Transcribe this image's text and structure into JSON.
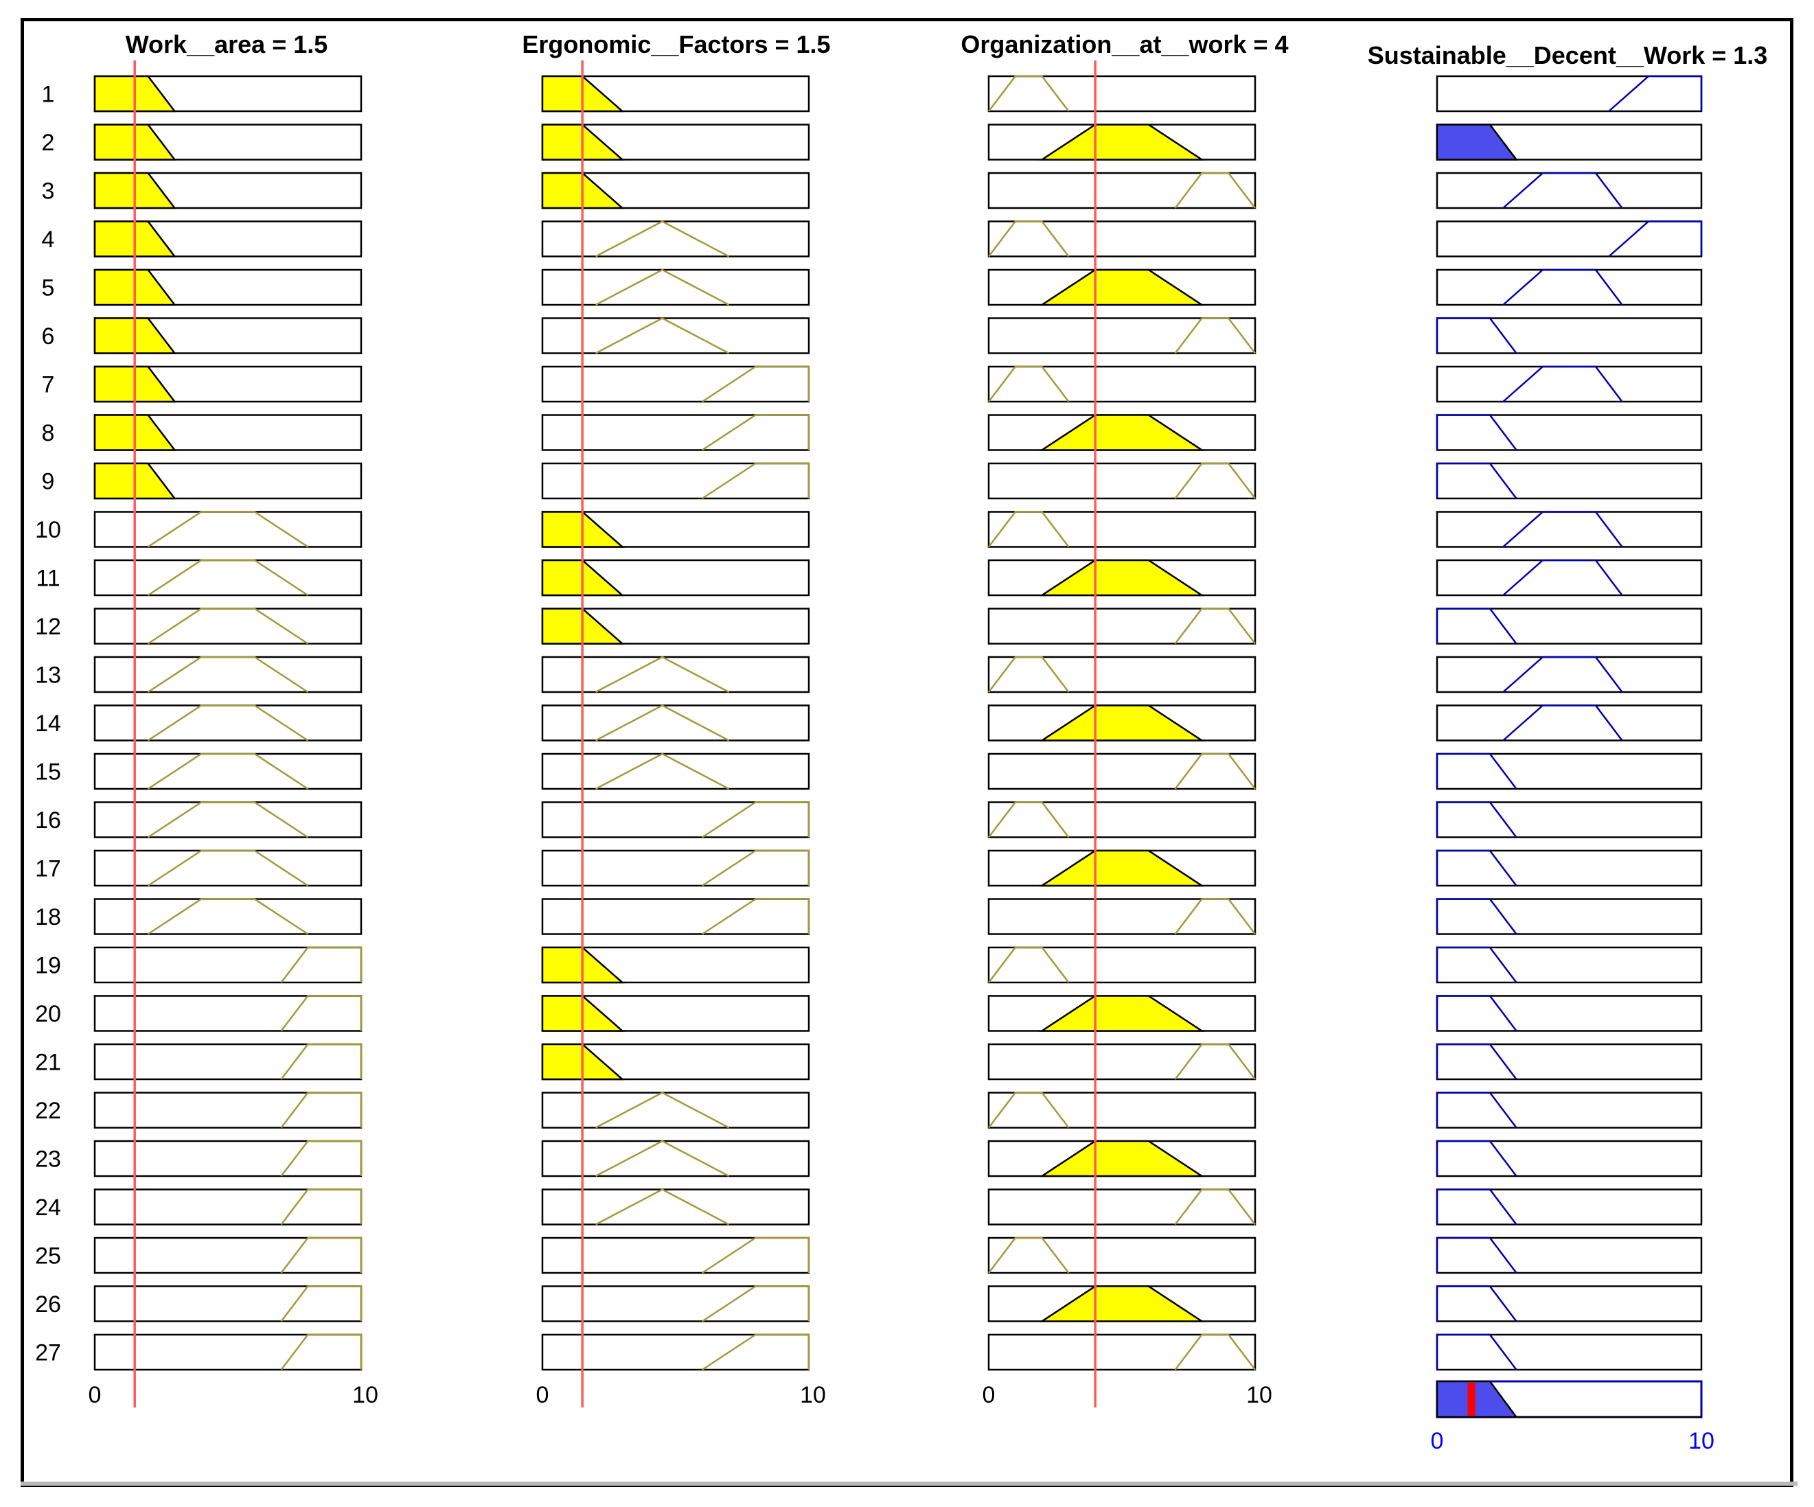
{
  "viewer": {
    "name": "Fuzzy Rule Viewer"
  },
  "colors": {
    "input_fill": "#ffff00",
    "input_edge": "#a39a3c",
    "input_edge_active": "#000000",
    "output_fill": "#4d4ded",
    "output_edge": "#0000b0",
    "cursor": "#ff5a5a",
    "result_line": "#ff0000"
  },
  "chart_data": {
    "type": "fuzzy-rule-viewer",
    "num_rules": 27,
    "rule_labels": [
      "1",
      "2",
      "3",
      "4",
      "5",
      "6",
      "7",
      "8",
      "9",
      "10",
      "11",
      "12",
      "13",
      "14",
      "15",
      "16",
      "17",
      "18",
      "19",
      "20",
      "21",
      "22",
      "23",
      "24",
      "25",
      "26",
      "27"
    ],
    "inputs": [
      {
        "name": "Work__area",
        "title": "Work__area = 1.5",
        "value": 1.5,
        "range": [
          0,
          10
        ],
        "tick_min": "0",
        "tick_max": "10",
        "mfs": {
          "low": {
            "type": "trapmf",
            "params": [
              0,
              0,
              2,
              3
            ]
          },
          "medium": {
            "type": "trapmf",
            "params": [
              2,
              4,
              6,
              8
            ]
          },
          "high": {
            "type": "trapmf",
            "params": [
              7,
              8,
              10,
              10
            ]
          }
        },
        "rule_mf": [
          "low",
          "low",
          "low",
          "low",
          "low",
          "low",
          "low",
          "low",
          "low",
          "medium",
          "medium",
          "medium",
          "medium",
          "medium",
          "medium",
          "medium",
          "medium",
          "medium",
          "high",
          "high",
          "high",
          "high",
          "high",
          "high",
          "high",
          "high",
          "high"
        ]
      },
      {
        "name": "Ergonomic__Factors",
        "title": "Ergonomic__Factors = 1.5",
        "value": 1.5,
        "range": [
          0,
          10
        ],
        "tick_min": "0",
        "tick_max": "10",
        "mfs": {
          "low": {
            "type": "trapmf",
            "params": [
              0,
              0,
              1.5,
              3
            ]
          },
          "medium": {
            "type": "trimf",
            "params": [
              2,
              4.5,
              7
            ]
          },
          "high": {
            "type": "trapmf",
            "params": [
              6,
              8,
              10,
              10
            ]
          }
        },
        "rule_mf": [
          "low",
          "low",
          "low",
          "medium",
          "medium",
          "medium",
          "high",
          "high",
          "high",
          "low",
          "low",
          "low",
          "medium",
          "medium",
          "medium",
          "high",
          "high",
          "high",
          "low",
          "low",
          "low",
          "medium",
          "medium",
          "medium",
          "high",
          "high",
          "high"
        ]
      },
      {
        "name": "Organization__at__work",
        "title": "Organization__at__work = 4",
        "value": 4,
        "range": [
          0,
          10
        ],
        "tick_min": "0",
        "tick_max": "10",
        "mfs": {
          "low": {
            "type": "trapmf",
            "params": [
              0,
              1,
              2,
              3
            ]
          },
          "medium": {
            "type": "trapmf",
            "params": [
              2,
              4,
              6,
              8
            ]
          },
          "high": {
            "type": "trapmf",
            "params": [
              7,
              8,
              9,
              10
            ]
          }
        },
        "rule_mf": [
          "low",
          "medium",
          "high",
          "low",
          "medium",
          "high",
          "low",
          "medium",
          "high",
          "low",
          "medium",
          "high",
          "low",
          "medium",
          "high",
          "low",
          "medium",
          "high",
          "low",
          "medium",
          "high",
          "low",
          "medium",
          "high",
          "low",
          "medium",
          "high"
        ]
      }
    ],
    "output": {
      "name": "Sustainable__Decent__Work",
      "title": "Sustainable__Decent__Work = 1.3",
      "value": 1.3,
      "range": [
        0,
        10
      ],
      "tick_min": "0",
      "tick_max": "10",
      "mfs": {
        "low": {
          "type": "trapmf",
          "params": [
            0,
            0,
            2,
            3
          ]
        },
        "medium": {
          "type": "trapmf",
          "params": [
            2.5,
            4,
            6,
            7
          ]
        },
        "high": {
          "type": "trapmf",
          "params": [
            6.5,
            8,
            10,
            10
          ]
        }
      },
      "rule_mf": [
        "high",
        "low",
        "medium",
        "high",
        "medium",
        "low",
        "medium",
        "low",
        "low",
        "medium",
        "medium",
        "low",
        "medium",
        "medium",
        "low",
        "low",
        "low",
        "low",
        "low",
        "low",
        "low",
        "low",
        "low",
        "low",
        "low",
        "low",
        "low"
      ]
    }
  }
}
